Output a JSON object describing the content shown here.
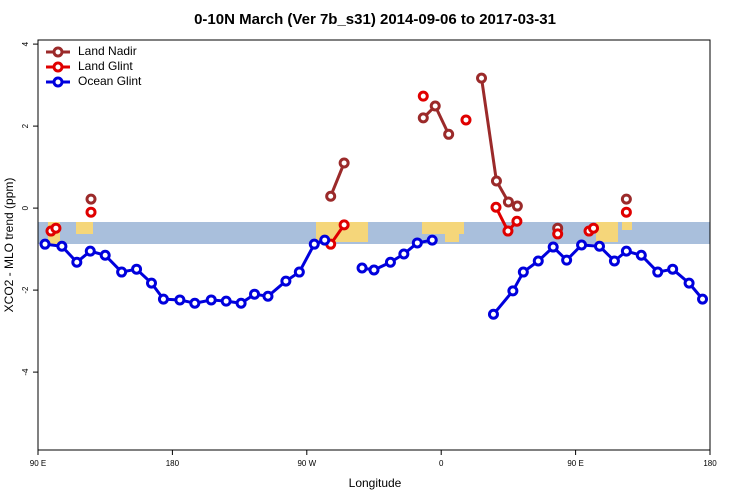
{
  "chart_data": {
    "type": "line",
    "title": "0-10N March (Ver 7b_s31)   2014-09-06 to 2017-03-31",
    "xlabel": "Longitude",
    "ylabel": "XCO2 - MLO trend (ppm)",
    "xlim": [
      90,
      540
    ],
    "xticks": [
      {
        "value": 90,
        "label": "90 E"
      },
      180,
      {
        "value": 270,
        "label": "90 W"
      },
      {
        "value": 360,
        "label": "0"
      },
      {
        "value": 450,
        "label": "90 E"
      },
      {
        "value": 540,
        "label": "180"
      }
    ],
    "ylim": [
      -5.9,
      4.1
    ],
    "yticks": [
      4,
      2,
      0,
      -2,
      -4
    ],
    "legend": "top-left",
    "series": [
      {
        "name": "Land Nadir",
        "color": "#9b2a2a",
        "x": [
          125.5,
          null,
          286,
          295,
          null,
          348,
          356,
          365,
          null,
          387,
          397,
          405,
          411,
          null,
          438,
          null,
          484
        ],
        "values": [
          0.22,
          null,
          0.29,
          1.1,
          null,
          2.2,
          2.49,
          1.8,
          null,
          3.17,
          0.66,
          0.15,
          0.05,
          null,
          -0.49,
          null,
          0.22
        ]
      },
      {
        "name": "Land Glint",
        "color": "#e00000",
        "x": [
          98.7,
          102,
          null,
          125.5,
          null,
          286,
          295,
          null,
          348,
          null,
          376.6,
          null,
          396.7,
          404.7,
          410.7,
          null,
          438,
          null,
          459,
          462,
          null,
          484
        ],
        "values": [
          -0.56,
          -0.49,
          null,
          -0.1,
          null,
          -0.88,
          -0.41,
          null,
          2.73,
          null,
          2.15,
          null,
          0.02,
          -0.56,
          -0.32,
          null,
          -0.63,
          null,
          -0.56,
          -0.49,
          null,
          -0.1
        ]
      },
      {
        "name": "Ocean Glint",
        "color": "#0000dd",
        "x": [
          94.7,
          106,
          116,
          125,
          135,
          146,
          156,
          166,
          174,
          185,
          195,
          206,
          216,
          226,
          235,
          244,
          256,
          265,
          275,
          282,
          null,
          307,
          315,
          326,
          335,
          344,
          354,
          null,
          395,
          408,
          415,
          425,
          435,
          444,
          454,
          466,
          476,
          484,
          494,
          505,
          515,
          526,
          535
        ],
        "values": [
          -0.88,
          -0.93,
          -1.32,
          -1.05,
          -1.15,
          -1.56,
          -1.49,
          -1.83,
          -2.22,
          -2.24,
          -2.32,
          -2.24,
          -2.27,
          -2.32,
          -2.1,
          -2.15,
          -1.78,
          -1.56,
          -0.88,
          -0.78,
          null,
          -1.46,
          -1.51,
          -1.32,
          -1.12,
          -0.85,
          -0.78,
          null,
          -2.59,
          -2.02,
          -1.56,
          -1.29,
          -0.95,
          -1.27,
          -0.9,
          -0.93,
          -1.29,
          -1.05,
          -1.15,
          -1.56,
          -1.49,
          -1.83,
          -2.22
        ]
      }
    ]
  }
}
